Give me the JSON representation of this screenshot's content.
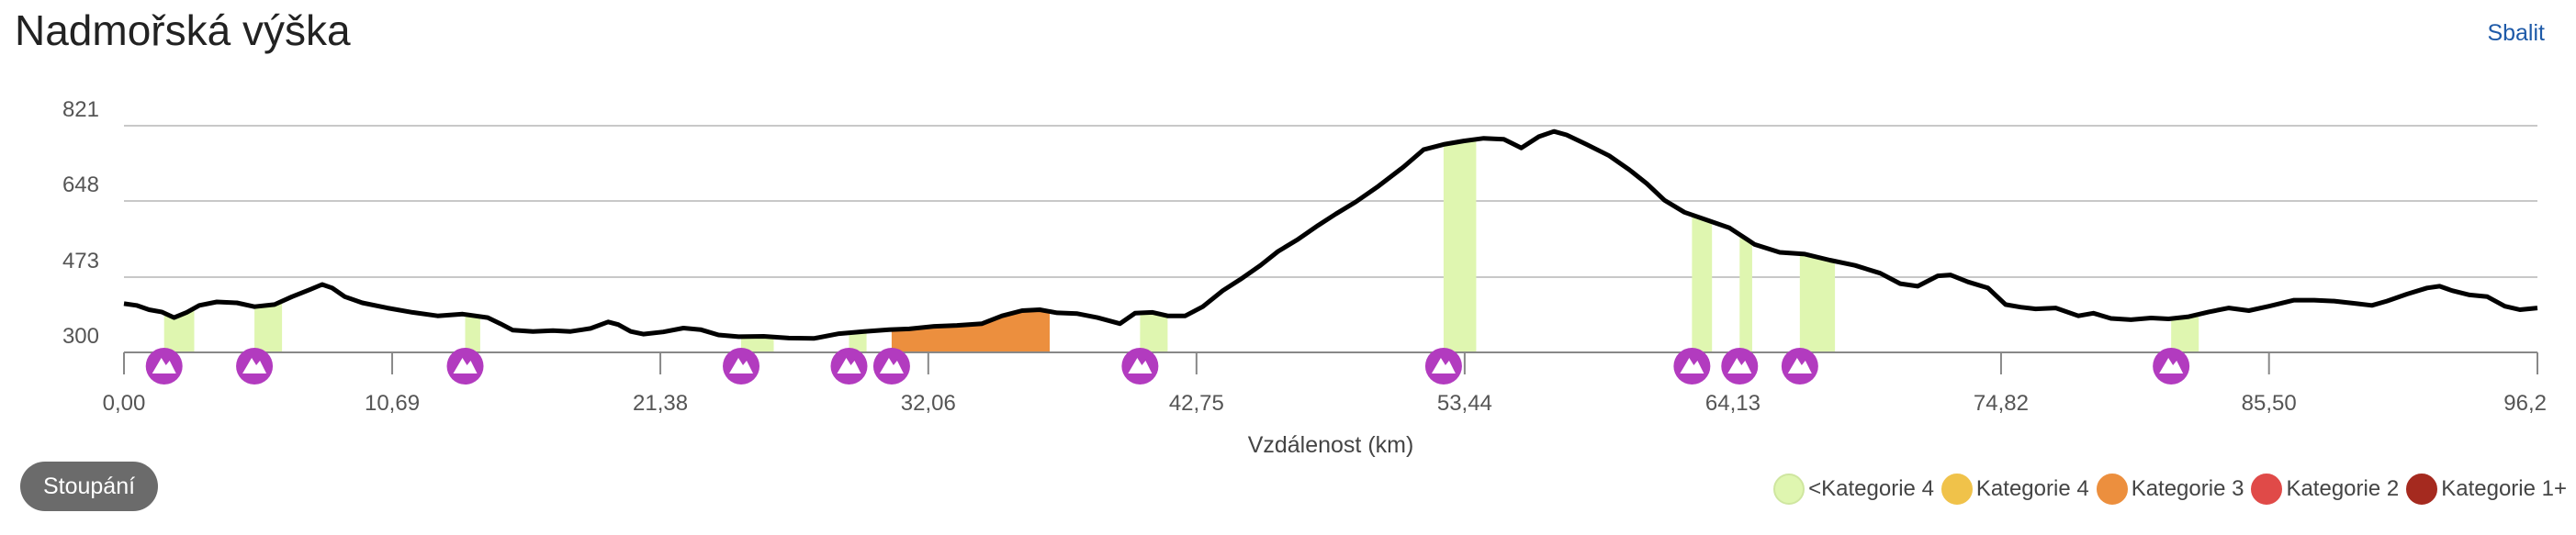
{
  "header": {
    "title": "Nadmořská výška",
    "collapse_label": "Sbalit"
  },
  "button": {
    "climb_label": "Stoupání"
  },
  "colors": {
    "line": "#000000",
    "grid": "#c8c8c8",
    "marker": "#b23bbf",
    "cat_lt4": "#dff6b0",
    "cat_4": "#f0c24a",
    "cat_3": "#ec8f3e",
    "cat_2": "#e04a48",
    "cat_1": "#a52a1f"
  },
  "legend": [
    {
      "label": "<Kategorie 4",
      "color": "#dff6b0",
      "border": "#cfe6a0"
    },
    {
      "label": "Kategorie 4",
      "color": "#f0c24a",
      "border": "#f0c24a"
    },
    {
      "label": "Kategorie 3",
      "color": "#ec8f3e",
      "border": "#ec8f3e"
    },
    {
      "label": "Kategorie 2",
      "color": "#e04a48",
      "border": "#e04a48"
    },
    {
      "label": "Kategorie 1+",
      "color": "#a52a1f",
      "border": "#a52a1f"
    }
  ],
  "chart_data": {
    "type": "area",
    "title": "Nadmořská výška",
    "xlabel": "Vzdálenost (km)",
    "ylabel": "",
    "xlim": [
      0,
      96.2
    ],
    "ylim": [
      300,
      821
    ],
    "y_ticks": [
      "300",
      "473",
      "648",
      "821"
    ],
    "x_ticks": [
      "0,00",
      "10,69",
      "21,38",
      "32,06",
      "42,75",
      "53,44",
      "64,13",
      "74,82",
      "85,50",
      "96,2"
    ],
    "x_tick_values": [
      0,
      10.69,
      21.38,
      32.06,
      42.75,
      53.44,
      64.13,
      74.82,
      85.5,
      96.2
    ],
    "grid": true,
    "legend_position": "bottom-right",
    "profile": [
      [
        0.0,
        412
      ],
      [
        0.5,
        408
      ],
      [
        1.0,
        398
      ],
      [
        1.5,
        393
      ],
      [
        2.0,
        380
      ],
      [
        2.5,
        392
      ],
      [
        3.0,
        408
      ],
      [
        3.7,
        416
      ],
      [
        4.5,
        414
      ],
      [
        5.2,
        405
      ],
      [
        6.0,
        410
      ],
      [
        6.7,
        428
      ],
      [
        7.4,
        444
      ],
      [
        7.9,
        456
      ],
      [
        8.3,
        448
      ],
      [
        8.8,
        428
      ],
      [
        9.5,
        414
      ],
      [
        10.5,
        402
      ],
      [
        11.5,
        392
      ],
      [
        12.5,
        384
      ],
      [
        13.5,
        388
      ],
      [
        14.5,
        380
      ],
      [
        15.0,
        366
      ],
      [
        15.5,
        351
      ],
      [
        16.3,
        348
      ],
      [
        17.1,
        350
      ],
      [
        17.8,
        348
      ],
      [
        18.6,
        355
      ],
      [
        19.3,
        370
      ],
      [
        19.7,
        364
      ],
      [
        20.2,
        348
      ],
      [
        20.7,
        342
      ],
      [
        21.5,
        347
      ],
      [
        22.3,
        356
      ],
      [
        23.0,
        352
      ],
      [
        23.7,
        340
      ],
      [
        24.5,
        336
      ],
      [
        25.5,
        337
      ],
      [
        26.5,
        333
      ],
      [
        27.5,
        332
      ],
      [
        28.5,
        343
      ],
      [
        29.5,
        348
      ],
      [
        30.5,
        352
      ],
      [
        31.3,
        354
      ],
      [
        32.3,
        360
      ],
      [
        33.2,
        362
      ],
      [
        34.2,
        366
      ],
      [
        35.0,
        384
      ],
      [
        35.8,
        396
      ],
      [
        36.5,
        398
      ],
      [
        37.2,
        391
      ],
      [
        38.0,
        389
      ],
      [
        38.8,
        380
      ],
      [
        39.7,
        366
      ],
      [
        40.3,
        390
      ],
      [
        41.0,
        392
      ],
      [
        41.6,
        384
      ],
      [
        42.3,
        384
      ],
      [
        43.0,
        405
      ],
      [
        43.8,
        442
      ],
      [
        44.5,
        468
      ],
      [
        45.3,
        500
      ],
      [
        46.0,
        532
      ],
      [
        46.8,
        560
      ],
      [
        47.6,
        592
      ],
      [
        48.3,
        618
      ],
      [
        49.1,
        646
      ],
      [
        50.0,
        682
      ],
      [
        51.0,
        726
      ],
      [
        51.8,
        766
      ],
      [
        52.6,
        778
      ],
      [
        53.4,
        786
      ],
      [
        54.2,
        792
      ],
      [
        55.0,
        790
      ],
      [
        55.7,
        770
      ],
      [
        56.4,
        796
      ],
      [
        57.0,
        808
      ],
      [
        57.5,
        800
      ],
      [
        58.3,
        778
      ],
      [
        59.2,
        752
      ],
      [
        60.0,
        720
      ],
      [
        60.7,
        688
      ],
      [
        61.4,
        650
      ],
      [
        62.2,
        622
      ],
      [
        63.0,
        606
      ],
      [
        64.0,
        586
      ],
      [
        65.0,
        548
      ],
      [
        66.0,
        530
      ],
      [
        67.0,
        526
      ],
      [
        68.0,
        512
      ],
      [
        69.0,
        500
      ],
      [
        70.0,
        482
      ],
      [
        70.8,
        458
      ],
      [
        71.5,
        452
      ],
      [
        72.3,
        476
      ],
      [
        72.8,
        478
      ],
      [
        73.5,
        462
      ],
      [
        74.3,
        448
      ],
      [
        75.0,
        410
      ],
      [
        75.6,
        404
      ],
      [
        76.2,
        400
      ],
      [
        77.0,
        402
      ],
      [
        77.9,
        384
      ],
      [
        78.5,
        390
      ],
      [
        79.2,
        378
      ],
      [
        80.0,
        375
      ],
      [
        80.8,
        379
      ],
      [
        81.5,
        377
      ],
      [
        82.3,
        382
      ],
      [
        83.1,
        393
      ],
      [
        83.9,
        402
      ],
      [
        84.7,
        396
      ],
      [
        85.5,
        406
      ],
      [
        86.5,
        420
      ],
      [
        87.3,
        420
      ],
      [
        88.1,
        418
      ],
      [
        89.0,
        412
      ],
      [
        89.6,
        408
      ],
      [
        90.2,
        418
      ],
      [
        91.0,
        434
      ],
      [
        91.8,
        448
      ],
      [
        92.3,
        452
      ],
      [
        92.8,
        442
      ],
      [
        93.5,
        432
      ],
      [
        94.2,
        428
      ],
      [
        94.9,
        406
      ],
      [
        95.5,
        398
      ],
      [
        96.2,
        402
      ]
    ],
    "raw_profile_scale": {
      "x_end": 96.2
    },
    "climbs": [
      {
        "start": 1.6,
        "end": 2.8,
        "category": "<Kategorie 4"
      },
      {
        "start": 5.2,
        "end": 6.3,
        "category": "<Kategorie 4"
      },
      {
        "start": 13.6,
        "end": 14.2,
        "category": "<Kategorie 4"
      },
      {
        "start": 24.6,
        "end": 25.9,
        "category": "<Kategorie 4"
      },
      {
        "start": 28.9,
        "end": 29.6,
        "category": "<Kategorie 4"
      },
      {
        "start": 30.6,
        "end": 36.9,
        "category": "Kategorie 3"
      },
      {
        "start": 40.5,
        "end": 41.6,
        "category": "<Kategorie 4"
      },
      {
        "start": 52.6,
        "end": 53.9,
        "category": "<Kategorie 4"
      },
      {
        "start": 62.5,
        "end": 63.3,
        "category": "<Kategorie 4"
      },
      {
        "start": 64.4,
        "end": 64.9,
        "category": "<Kategorie 4"
      },
      {
        "start": 66.8,
        "end": 68.2,
        "category": "<Kategorie 4"
      },
      {
        "start": 81.6,
        "end": 82.7,
        "category": "<Kategorie 4"
      }
    ],
    "markers": [
      1.6,
      5.2,
      13.6,
      24.6,
      28.9,
      30.6,
      40.5,
      52.6,
      62.5,
      64.4,
      66.8,
      81.6
    ]
  }
}
